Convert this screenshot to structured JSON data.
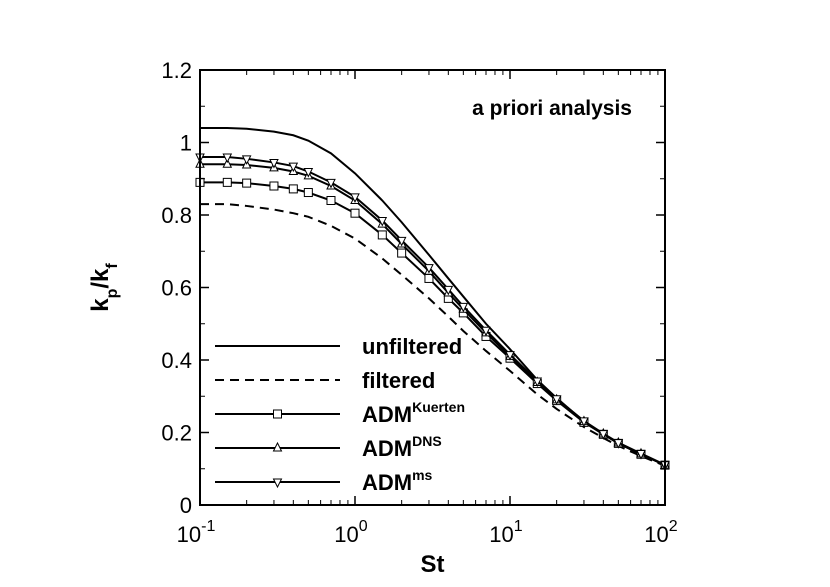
{
  "chart_data": {
    "type": "line",
    "title": "",
    "annotation": "a priori analysis",
    "xlabel": "St",
    "ylabel": {
      "base": "k",
      "sub1": "p",
      "slash": "/",
      "base2": "k",
      "sub2": "f"
    },
    "x_scale": "log",
    "xlim": [
      0.1,
      100
    ],
    "ylim": [
      0,
      1.2
    ],
    "x_ticks": [
      {
        "value": 0.1,
        "base": "10",
        "exp": "-1"
      },
      {
        "value": 1,
        "base": "10",
        "exp": "0"
      },
      {
        "value": 10,
        "base": "10",
        "exp": "1"
      },
      {
        "value": 100,
        "base": "10",
        "exp": "2"
      }
    ],
    "y_ticks": [
      {
        "value": 0,
        "label": "0"
      },
      {
        "value": 0.2,
        "label": "0.2"
      },
      {
        "value": 0.4,
        "label": "0.4"
      },
      {
        "value": 0.6,
        "label": "0.6"
      },
      {
        "value": 0.8,
        "label": "0.8"
      },
      {
        "value": 1,
        "label": "1"
      },
      {
        "value": 1.2,
        "label": "1.2"
      }
    ],
    "grid": false,
    "legend_position": "bottom-left",
    "series": [
      {
        "name": "unfiltered",
        "sup": "",
        "line": "solid",
        "marker": "none",
        "x": [
          0.1,
          0.15,
          0.2,
          0.3,
          0.4,
          0.5,
          0.7,
          1.0,
          1.5,
          2.0,
          3.0,
          4.0,
          5.0,
          7.0,
          10.0,
          15.0,
          20.0,
          30.0,
          40.0,
          50.0,
          70.0,
          100.0
        ],
        "y": [
          1.04,
          1.04,
          1.038,
          1.03,
          1.02,
          1.005,
          0.97,
          0.915,
          0.84,
          0.78,
          0.69,
          0.625,
          0.575,
          0.5,
          0.43,
          0.345,
          0.295,
          0.23,
          0.195,
          0.17,
          0.14,
          0.11
        ]
      },
      {
        "name": "filtered",
        "sup": "",
        "line": "dashed",
        "marker": "none",
        "x": [
          0.1,
          0.15,
          0.2,
          0.3,
          0.4,
          0.5,
          0.7,
          1.0,
          1.5,
          2.0,
          3.0,
          4.0,
          5.0,
          7.0,
          10.0,
          15.0,
          20.0,
          30.0,
          40.0,
          50.0,
          70.0,
          100.0
        ],
        "y": [
          0.83,
          0.83,
          0.825,
          0.815,
          0.805,
          0.795,
          0.77,
          0.735,
          0.68,
          0.635,
          0.57,
          0.52,
          0.48,
          0.425,
          0.37,
          0.305,
          0.265,
          0.215,
          0.185,
          0.163,
          0.135,
          0.108
        ]
      },
      {
        "name": "ADM",
        "sup": "Kuerten",
        "line": "solid",
        "marker": "square",
        "x": [
          0.1,
          0.15,
          0.2,
          0.3,
          0.4,
          0.5,
          0.7,
          1.0,
          1.5,
          2.0,
          3.0,
          4.0,
          5.0,
          7.0,
          10.0,
          15.0,
          20.0,
          30.0,
          40.0,
          50.0,
          70.0,
          100.0
        ],
        "y": [
          0.89,
          0.89,
          0.888,
          0.88,
          0.872,
          0.862,
          0.84,
          0.805,
          0.745,
          0.695,
          0.625,
          0.57,
          0.53,
          0.465,
          0.405,
          0.335,
          0.288,
          0.228,
          0.195,
          0.17,
          0.14,
          0.11
        ]
      },
      {
        "name": "ADM",
        "sup": "DNS",
        "line": "solid",
        "marker": "triangle-up",
        "x": [
          0.1,
          0.15,
          0.2,
          0.3,
          0.4,
          0.5,
          0.7,
          1.0,
          1.5,
          2.0,
          3.0,
          4.0,
          5.0,
          7.0,
          10.0,
          15.0,
          20.0,
          30.0,
          40.0,
          50.0,
          70.0,
          100.0
        ],
        "y": [
          0.94,
          0.94,
          0.938,
          0.93,
          0.92,
          0.908,
          0.88,
          0.84,
          0.775,
          0.72,
          0.645,
          0.585,
          0.54,
          0.475,
          0.41,
          0.338,
          0.29,
          0.23,
          0.196,
          0.171,
          0.141,
          0.11
        ]
      },
      {
        "name": "ADM",
        "sup": "ms",
        "line": "solid",
        "marker": "triangle-down",
        "x": [
          0.1,
          0.15,
          0.2,
          0.3,
          0.4,
          0.5,
          0.7,
          1.0,
          1.5,
          2.0,
          3.0,
          4.0,
          5.0,
          7.0,
          10.0,
          15.0,
          20.0,
          30.0,
          40.0,
          50.0,
          70.0,
          100.0
        ],
        "y": [
          0.96,
          0.96,
          0.955,
          0.945,
          0.935,
          0.92,
          0.89,
          0.85,
          0.785,
          0.73,
          0.655,
          0.595,
          0.548,
          0.482,
          0.415,
          0.342,
          0.293,
          0.232,
          0.197,
          0.172,
          0.142,
          0.111
        ]
      }
    ]
  }
}
